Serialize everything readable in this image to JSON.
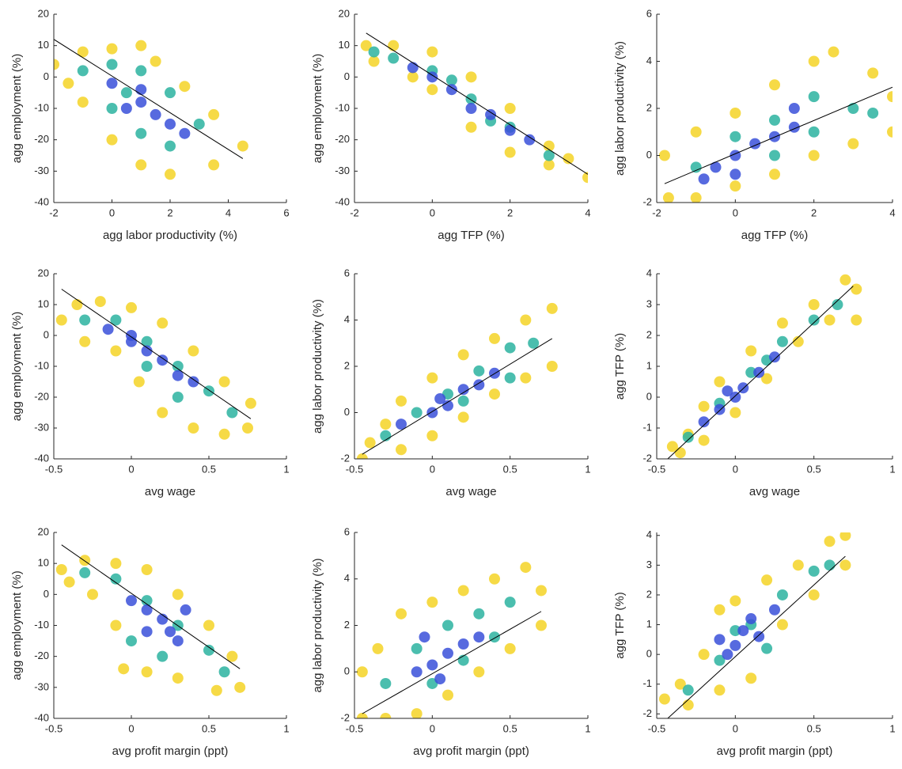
{
  "chart_data": [
    {
      "type": "scatter",
      "x_label": "agg labor productivity (%)",
      "y_label": "agg employment (%)",
      "xlim": [
        -2,
        6
      ],
      "ylim": [
        -40,
        20
      ],
      "xticks": [
        -2,
        0,
        2,
        4,
        6
      ],
      "yticks": [
        -40,
        -30,
        -20,
        -10,
        0,
        10,
        20
      ],
      "series": [
        {
          "color": "#f5d426",
          "x": [
            -2,
            -1,
            0,
            1,
            1.5,
            2.5,
            3.5,
            4.5,
            3.5,
            2,
            1,
            0,
            -1,
            -1.5
          ],
          "values": [
            4,
            8,
            9,
            10,
            5,
            -3,
            -12,
            -22,
            -28,
            -31,
            -28,
            -20,
            -8,
            -2
          ]
        },
        {
          "color": "#2bb3a0",
          "x": [
            -1,
            0,
            1,
            2,
            3,
            2,
            1,
            0,
            0.5
          ],
          "values": [
            2,
            4,
            2,
            -5,
            -15,
            -22,
            -18,
            -10,
            -5
          ]
        },
        {
          "color": "#3a50d9",
          "x": [
            0,
            1,
            1.5,
            2,
            0.5,
            1,
            2.5
          ],
          "values": [
            -2,
            -8,
            -12,
            -15,
            -10,
            -4,
            -18
          ]
        }
      ],
      "fit": {
        "color": "#000000",
        "x": [
          -2,
          4.5
        ],
        "values": [
          12,
          -26
        ]
      }
    },
    {
      "type": "scatter",
      "x_label": "agg TFP (%)",
      "y_label": "agg employment (%)",
      "xlim": [
        -2,
        4
      ],
      "ylim": [
        -40,
        20
      ],
      "xticks": [
        -2,
        0,
        2,
        4
      ],
      "yticks": [
        -40,
        -30,
        -20,
        -10,
        0,
        10,
        20
      ],
      "series": [
        {
          "color": "#f5d426",
          "x": [
            -1.7,
            -1.5,
            -1,
            0,
            1,
            2,
            3,
            4,
            3,
            2,
            1,
            0,
            -0.5,
            3.5
          ],
          "values": [
            10,
            5,
            10,
            8,
            0,
            -10,
            -22,
            -32,
            -28,
            -24,
            -16,
            -4,
            0,
            -26
          ]
        },
        {
          "color": "#2bb3a0",
          "x": [
            -1,
            0,
            1,
            2,
            3,
            -1.5,
            0.5,
            1.5
          ],
          "values": [
            6,
            2,
            -7,
            -16,
            -25,
            8,
            -1,
            -14
          ]
        },
        {
          "color": "#3a50d9",
          "x": [
            -0.5,
            0.5,
            1,
            1.5,
            2,
            0,
            2.5
          ],
          "values": [
            3,
            -4,
            -10,
            -12,
            -17,
            0,
            -20
          ]
        }
      ],
      "fit": {
        "color": "#000000",
        "x": [
          -1.7,
          4
        ],
        "values": [
          14,
          -31
        ]
      }
    },
    {
      "type": "scatter",
      "x_label": "agg TFP (%)",
      "y_label": "agg labor productivity (%)",
      "xlim": [
        -2,
        4
      ],
      "ylim": [
        -2,
        6
      ],
      "xticks": [
        -2,
        0,
        2,
        4
      ],
      "yticks": [
        -2,
        0,
        2,
        4,
        6
      ],
      "series": [
        {
          "color": "#f5d426",
          "x": [
            -1.7,
            -1.8,
            -1,
            0,
            1,
            2,
            2.5,
            3.5,
            4,
            4,
            3,
            2,
            1,
            0,
            -1
          ],
          "values": [
            -1.8,
            0,
            1,
            1.8,
            3,
            4,
            4.4,
            3.5,
            2.5,
            1,
            0.5,
            0,
            -0.8,
            -1.3,
            -1.8
          ]
        },
        {
          "color": "#2bb3a0",
          "x": [
            -1,
            0,
            1,
            2,
            3,
            2,
            1,
            3.5
          ],
          "values": [
            -0.5,
            0.8,
            1.5,
            2.5,
            2,
            1,
            0,
            1.8
          ]
        },
        {
          "color": "#3a50d9",
          "x": [
            -0.5,
            0,
            0.5,
            1,
            1.5,
            0,
            -0.8,
            1.5
          ],
          "values": [
            -0.5,
            0,
            0.5,
            0.8,
            1.2,
            -0.8,
            -1,
            2
          ]
        }
      ],
      "fit": {
        "color": "#000000",
        "x": [
          -1.8,
          4
        ],
        "values": [
          -1.2,
          2.9
        ]
      }
    },
    {
      "type": "scatter",
      "x_label": "avg wage",
      "y_label": "agg employment (%)",
      "xlim": [
        -0.5,
        1
      ],
      "ylim": [
        -40,
        20
      ],
      "xticks": [
        -0.5,
        0,
        0.5,
        1
      ],
      "yticks": [
        -40,
        -30,
        -20,
        -10,
        0,
        10,
        20
      ],
      "series": [
        {
          "color": "#f5d426",
          "x": [
            -0.45,
            -0.35,
            -0.2,
            0,
            0.2,
            0.4,
            0.6,
            0.77,
            0.75,
            0.6,
            0.4,
            0.2,
            0.05,
            -0.1,
            -0.3
          ],
          "values": [
            5,
            10,
            11,
            9,
            4,
            -5,
            -15,
            -22,
            -30,
            -32,
            -30,
            -25,
            -15,
            -5,
            -2
          ]
        },
        {
          "color": "#2bb3a0",
          "x": [
            -0.3,
            -0.1,
            0.1,
            0.3,
            0.5,
            0.65,
            0.3,
            0.1
          ],
          "values": [
            5,
            5,
            -2,
            -10,
            -18,
            -25,
            -20,
            -10
          ]
        },
        {
          "color": "#3a50d9",
          "x": [
            -0.15,
            0,
            0.1,
            0.2,
            0.3,
            0,
            0.4
          ],
          "values": [
            2,
            -2,
            -5,
            -8,
            -13,
            0,
            -15
          ]
        }
      ],
      "fit": {
        "color": "#000000",
        "x": [
          -0.45,
          0.77
        ],
        "values": [
          15,
          -27
        ]
      }
    },
    {
      "type": "scatter",
      "x_label": "avg wage",
      "y_label": "agg labor productivity (%)",
      "xlim": [
        -0.5,
        1
      ],
      "ylim": [
        -2,
        6
      ],
      "xticks": [
        -0.5,
        0,
        0.5,
        1
      ],
      "yticks": [
        -2,
        0,
        2,
        4,
        6
      ],
      "series": [
        {
          "color": "#f5d426",
          "x": [
            -0.45,
            -0.4,
            -0.3,
            -0.2,
            0,
            0.2,
            0.4,
            0.6,
            0.77,
            0.77,
            0.6,
            0.4,
            0.2,
            0,
            -0.2
          ],
          "values": [
            -2,
            -1.3,
            -0.5,
            0.5,
            1.5,
            2.5,
            3.2,
            4,
            4.5,
            2,
            1.5,
            0.8,
            -0.2,
            -1,
            -1.6
          ]
        },
        {
          "color": "#2bb3a0",
          "x": [
            -0.3,
            -0.1,
            0.1,
            0.3,
            0.5,
            0.65,
            0.5,
            0.2
          ],
          "values": [
            -1,
            0,
            0.8,
            1.8,
            2.8,
            3,
            1.5,
            0.5
          ]
        },
        {
          "color": "#3a50d9",
          "x": [
            -0.2,
            0,
            0.1,
            0.2,
            0.3,
            0.05,
            0.4
          ],
          "values": [
            -0.5,
            0,
            0.3,
            1,
            1.2,
            0.6,
            1.7
          ]
        }
      ],
      "fit": {
        "color": "#000000",
        "x": [
          -0.45,
          0.77
        ],
        "values": [
          -1.8,
          3.2
        ]
      }
    },
    {
      "type": "scatter",
      "x_label": "avg wage",
      "y_label": "agg TFP (%)",
      "xlim": [
        -0.5,
        1
      ],
      "ylim": [
        -2,
        4
      ],
      "xticks": [
        -0.5,
        0,
        0.5,
        1
      ],
      "yticks": [
        -2,
        -1,
        0,
        1,
        2,
        3,
        4
      ],
      "series": [
        {
          "color": "#f5d426",
          "x": [
            -0.4,
            -0.3,
            -0.2,
            -0.1,
            0.1,
            0.3,
            0.5,
            0.7,
            0.77,
            0.77,
            0.6,
            0.4,
            0.2,
            0,
            -0.2,
            -0.35
          ],
          "values": [
            -1.6,
            -1.2,
            -0.3,
            0.5,
            1.5,
            2.4,
            3,
            3.8,
            3.5,
            2.5,
            2.5,
            1.8,
            0.6,
            -0.5,
            -1.4,
            -1.8
          ]
        },
        {
          "color": "#2bb3a0",
          "x": [
            -0.3,
            -0.1,
            0.1,
            0.3,
            0.5,
            0.65,
            0.2
          ],
          "values": [
            -1.3,
            -0.2,
            0.8,
            1.8,
            2.5,
            3,
            1.2
          ]
        },
        {
          "color": "#3a50d9",
          "x": [
            -0.2,
            -0.1,
            0,
            0.05,
            0.15,
            -0.05,
            0.25
          ],
          "values": [
            -0.8,
            -0.4,
            0,
            0.3,
            0.8,
            0.2,
            1.3
          ]
        }
      ],
      "fit": {
        "color": "#000000",
        "x": [
          -0.43,
          0.75
        ],
        "values": [
          -2,
          3.6
        ]
      }
    },
    {
      "type": "scatter",
      "x_label": "avg profit margin (ppt)",
      "y_label": "agg employment (%)",
      "xlim": [
        -0.5,
        1
      ],
      "ylim": [
        -40,
        20
      ],
      "xticks": [
        -0.5,
        0,
        0.5,
        1
      ],
      "yticks": [
        -40,
        -30,
        -20,
        -10,
        0,
        10,
        20
      ],
      "series": [
        {
          "color": "#f5d426",
          "x": [
            -0.45,
            -0.3,
            -0.1,
            0.1,
            0.3,
            0.5,
            0.65,
            0.7,
            0.55,
            0.3,
            0.1,
            -0.05,
            -0.1,
            -0.25,
            -0.4
          ],
          "values": [
            8,
            11,
            10,
            8,
            0,
            -10,
            -20,
            -30,
            -31,
            -27,
            -25,
            -24,
            -10,
            0,
            4
          ]
        },
        {
          "color": "#2bb3a0",
          "x": [
            -0.3,
            -0.1,
            0.1,
            0.3,
            0.5,
            0.6,
            0.2,
            0
          ],
          "values": [
            7,
            5,
            -2,
            -10,
            -18,
            -25,
            -20,
            -15
          ]
        },
        {
          "color": "#3a50d9",
          "x": [
            0,
            0.1,
            0.2,
            0.25,
            0.3,
            0.1,
            0.35
          ],
          "values": [
            -2,
            -5,
            -8,
            -12,
            -15,
            -12,
            -5
          ]
        }
      ],
      "fit": {
        "color": "#000000",
        "x": [
          -0.45,
          0.7
        ],
        "values": [
          16,
          -24
        ]
      }
    },
    {
      "type": "scatter",
      "x_label": "avg profit margin (ppt)",
      "y_label": "agg labor productivity (%)",
      "xlim": [
        -0.5,
        1
      ],
      "ylim": [
        -2,
        6
      ],
      "xticks": [
        -0.5,
        0,
        0.5,
        1
      ],
      "yticks": [
        -2,
        0,
        2,
        4,
        6
      ],
      "series": [
        {
          "color": "#f5d426",
          "x": [
            -0.45,
            -0.45,
            -0.35,
            -0.2,
            0,
            0.2,
            0.4,
            0.6,
            0.7,
            0.7,
            0.5,
            0.3,
            0.1,
            -0.1,
            -0.3
          ],
          "values": [
            -2,
            0,
            1,
            2.5,
            3,
            3.5,
            4,
            4.5,
            3.5,
            2,
            1,
            0,
            -1,
            -1.8,
            -2
          ]
        },
        {
          "color": "#2bb3a0",
          "x": [
            -0.3,
            -0.1,
            0.1,
            0.3,
            0.5,
            0.4,
            0.2,
            0
          ],
          "values": [
            -0.5,
            1,
            2,
            2.5,
            3,
            1.5,
            0.5,
            -0.5
          ]
        },
        {
          "color": "#3a50d9",
          "x": [
            -0.1,
            0,
            0.1,
            0.2,
            0.05,
            0.3,
            -0.05
          ],
          "values": [
            0,
            0.3,
            0.8,
            1.2,
            -0.3,
            1.5,
            1.5
          ]
        }
      ],
      "fit": {
        "color": "#000000",
        "x": [
          -0.45,
          0.7
        ],
        "values": [
          -1.8,
          2.6
        ]
      }
    },
    {
      "type": "scatter",
      "x_label": "avg profit margin (ppt)",
      "y_label": "agg TFP (%)",
      "xlim": [
        -0.5,
        1
      ],
      "ylim": [
        -2.15,
        4.1
      ],
      "xticks": [
        -0.5,
        0,
        0.5,
        1
      ],
      "yticks": [
        -2,
        -1,
        0,
        1,
        2,
        3,
        4
      ],
      "series": [
        {
          "color": "#f5d426",
          "x": [
            -0.45,
            -0.35,
            -0.2,
            -0.1,
            0,
            0.2,
            0.4,
            0.6,
            0.7,
            0.7,
            0.5,
            0.3,
            0.1,
            -0.1,
            -0.3
          ],
          "values": [
            -1.5,
            -1,
            0,
            1.5,
            1.8,
            2.5,
            3,
            3.8,
            4,
            3,
            2,
            1,
            -0.8,
            -1.2,
            -1.7
          ]
        },
        {
          "color": "#2bb3a0",
          "x": [
            -0.3,
            -0.1,
            0.1,
            0.3,
            0.5,
            0,
            0.2,
            0.6
          ],
          "values": [
            -1.2,
            -0.2,
            1,
            2,
            2.8,
            0.8,
            0.2,
            3
          ]
        },
        {
          "color": "#3a50d9",
          "x": [
            -0.05,
            0,
            0.05,
            0.1,
            0.15,
            -0.1,
            0.25
          ],
          "values": [
            0,
            0.3,
            0.8,
            1.2,
            0.6,
            0.5,
            1.5
          ]
        }
      ],
      "fit": {
        "color": "#000000",
        "x": [
          -0.43,
          0.7
        ],
        "values": [
          -2.15,
          3.3
        ]
      }
    }
  ]
}
